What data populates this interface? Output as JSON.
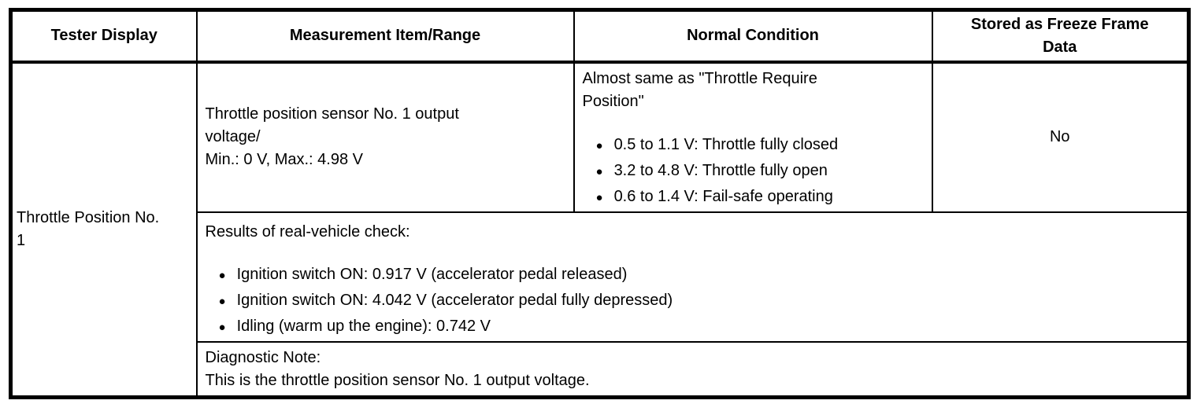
{
  "ui": {
    "bullet": "●"
  },
  "table": {
    "headers": {
      "tester_display": "Tester Display",
      "measurement": "Measurement Item/Range",
      "normal_condition": "Normal Condition",
      "freeze_frame": "Stored as Freeze Frame\nData"
    },
    "row": {
      "tester_display": "Throttle Position No.\n1",
      "measurement": "Throttle position sensor No. 1 output\nvoltage/\nMin.: 0 V, Max.: 4.98 V",
      "normal_condition": {
        "intro": "Almost same as \"Throttle Require\nPosition\"",
        "bullets": [
          "0.5 to 1.1 V: Throttle fully closed",
          "3.2 to 4.8 V: Throttle fully open",
          "0.6 to 1.4 V: Fail-safe operating"
        ]
      },
      "freeze_frame": "No",
      "results": {
        "intro": "Results of real-vehicle check:",
        "bullets": [
          "Ignition switch ON: 0.917 V (accelerator pedal released)",
          "Ignition switch ON: 4.042 V (accelerator pedal fully depressed)",
          "Idling (warm up the engine): 0.742 V"
        ]
      },
      "diagnostic_note": "Diagnostic Note:\nThis is the throttle position sensor No. 1 output voltage."
    }
  }
}
